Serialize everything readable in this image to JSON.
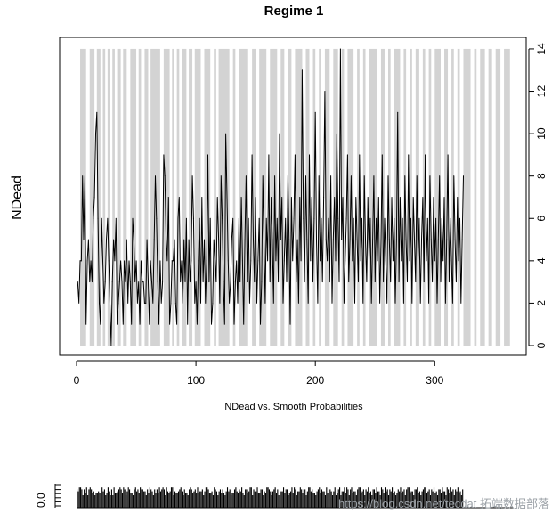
{
  "chart_data": {
    "type": "line",
    "title": "Regime 1",
    "xlabel": "NDead vs. Smooth Probabilities",
    "ylabel": "NDead",
    "xlim": [
      1,
      365
    ],
    "ylim": [
      0,
      14
    ],
    "x_ticks": [
      0,
      100,
      200,
      300
    ],
    "y_ticks": [
      0,
      2,
      4,
      6,
      8,
      10,
      12,
      14
    ],
    "y_axis_side": "right",
    "grid": false,
    "legend": "none",
    "series_color": "#000000",
    "shade_color": "#d3d3d3",
    "shaded_ranges": [
      [
        3,
        8
      ],
      [
        11,
        15
      ],
      [
        17,
        20
      ],
      [
        22,
        24
      ],
      [
        26,
        28
      ],
      [
        30,
        32
      ],
      [
        34,
        37
      ],
      [
        39,
        42
      ],
      [
        45,
        50
      ],
      [
        52,
        54
      ],
      [
        57,
        60
      ],
      [
        62,
        70
      ],
      [
        73,
        78
      ],
      [
        80,
        82
      ],
      [
        84,
        86
      ],
      [
        88,
        92
      ],
      [
        94,
        97
      ],
      [
        99,
        104
      ],
      [
        107,
        112
      ],
      [
        115,
        117
      ],
      [
        119,
        128
      ],
      [
        131,
        133
      ],
      [
        136,
        143
      ],
      [
        147,
        150
      ],
      [
        153,
        159
      ],
      [
        162,
        168
      ],
      [
        171,
        174
      ],
      [
        177,
        180
      ],
      [
        183,
        189
      ],
      [
        192,
        195
      ],
      [
        198,
        200
      ],
      [
        203,
        205
      ],
      [
        208,
        212
      ],
      [
        215,
        219
      ],
      [
        222,
        224
      ],
      [
        227,
        232
      ],
      [
        235,
        237
      ],
      [
        240,
        242
      ],
      [
        245,
        252
      ],
      [
        255,
        258
      ],
      [
        261,
        263
      ],
      [
        266,
        271
      ],
      [
        274,
        276
      ],
      [
        279,
        281
      ],
      [
        284,
        287
      ],
      [
        290,
        292
      ],
      [
        295,
        297
      ],
      [
        300,
        305
      ],
      [
        308,
        311
      ],
      [
        314,
        316
      ],
      [
        319,
        321
      ],
      [
        324,
        330
      ],
      [
        333,
        335
      ],
      [
        338,
        342
      ],
      [
        345,
        348
      ],
      [
        351,
        355
      ],
      [
        358,
        363
      ]
    ],
    "y_values": [
      3,
      2,
      4,
      4,
      8,
      5,
      8,
      1,
      4,
      5,
      3,
      4,
      3,
      6,
      7,
      10,
      11,
      6,
      2,
      1,
      6,
      4,
      2,
      3,
      5,
      6,
      4,
      2,
      0,
      3,
      5,
      4,
      6,
      1,
      2,
      3,
      4,
      3,
      1,
      4,
      3,
      5,
      2,
      4,
      3,
      1,
      6,
      5,
      3,
      4,
      2,
      3,
      1,
      4,
      3,
      3,
      2,
      2,
      5,
      3,
      1,
      4,
      3,
      2,
      5,
      8,
      6,
      3,
      1,
      4,
      2,
      3,
      9,
      8,
      5,
      4,
      7,
      1,
      2,
      4,
      4,
      5,
      2,
      1,
      6,
      7,
      3,
      4,
      2,
      5,
      3,
      6,
      1,
      5,
      3,
      4,
      8,
      6,
      2,
      3,
      1,
      4,
      6,
      2,
      7,
      3,
      5,
      2,
      4,
      9,
      3,
      6,
      1,
      2,
      5,
      4,
      3,
      7,
      5,
      2,
      8,
      6,
      3,
      1,
      10,
      7,
      4,
      2,
      3,
      5,
      6,
      1,
      3,
      4,
      2,
      6,
      3,
      7,
      4,
      1,
      5,
      8,
      3,
      6,
      2,
      4,
      9,
      5,
      3,
      7,
      2,
      4,
      6,
      1,
      3,
      8,
      5,
      2,
      6,
      4,
      9,
      3,
      7,
      5,
      2,
      8,
      4,
      6,
      3,
      10,
      5,
      7,
      2,
      4,
      6,
      3,
      8,
      5,
      1,
      7,
      4,
      6,
      9,
      3,
      5,
      2,
      7,
      4,
      13,
      6,
      3,
      8,
      5,
      2,
      9,
      4,
      7,
      3,
      6,
      11,
      5,
      2,
      8,
      4,
      6,
      3,
      7,
      12,
      5,
      4,
      6,
      3,
      8,
      2,
      5,
      7,
      4,
      10,
      6,
      3,
      14,
      5,
      7,
      2,
      4,
      6,
      9,
      3,
      5,
      8,
      4,
      6,
      2,
      7,
      5,
      3,
      9,
      4,
      6,
      2,
      8,
      5,
      3,
      7,
      4,
      6,
      2,
      5,
      8,
      3,
      6,
      4,
      7,
      2,
      5,
      9,
      3,
      6,
      4,
      2,
      8,
      5,
      3,
      7,
      4,
      6,
      2,
      5,
      11,
      3,
      7,
      4,
      6,
      2,
      8,
      5,
      3,
      9,
      4,
      6,
      2,
      7,
      5,
      3,
      8,
      4,
      6,
      2,
      5,
      7,
      3,
      9,
      4,
      6,
      2,
      8,
      5,
      3,
      7,
      4,
      6,
      2,
      5,
      8,
      3,
      6,
      4,
      7,
      2,
      5,
      9,
      3,
      6,
      4,
      2,
      8,
      5,
      3,
      7,
      4,
      6,
      2,
      5,
      8
    ]
  },
  "overview": {
    "y_tick_label": "0.0"
  },
  "watermark": {
    "text": "https://blog.csdn.net/tecdat   拓端数据部落"
  }
}
